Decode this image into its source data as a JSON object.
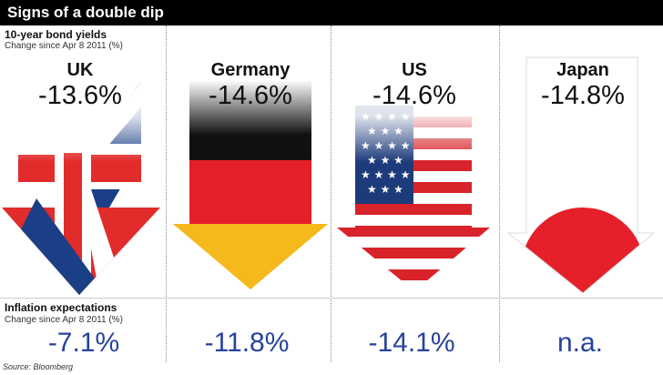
{
  "title": "Signs of a double dip",
  "bond_section": {
    "title": "10-year bond yields",
    "subtitle": "Change since Apr 8 2011 (%)"
  },
  "inflation_section": {
    "title": "Inflation expectations",
    "subtitle": "Change since Apr 8 2011 (%)"
  },
  "source": "Source: Bloomberg",
  "colors": {
    "uk_blue": "#1b3f86",
    "uk_red": "#e22b2b",
    "de_black": "#111111",
    "de_red": "#e5202a",
    "de_gold": "#f5b91c",
    "us_blue": "#1d3b7a",
    "us_red": "#d8232a",
    "jp_red": "#e5202a",
    "value_text": "#27439b"
  },
  "chart_data": {
    "type": "table",
    "categories": [
      "UK",
      "Germany",
      "US",
      "Japan"
    ],
    "series": [
      {
        "name": "10-year bond yields",
        "values": [
          -13.6,
          -14.6,
          -14.6,
          -14.8
        ]
      },
      {
        "name": "Inflation expectations",
        "values": [
          -7.1,
          -11.8,
          -14.1,
          null
        ]
      }
    ],
    "labels": {
      "bond": [
        "-13.6%",
        "-14.6%",
        "-14.6%",
        "-14.8%"
      ],
      "inflation": [
        "-7.1%",
        "-11.8%",
        "-14.1%",
        "n.a."
      ]
    }
  }
}
